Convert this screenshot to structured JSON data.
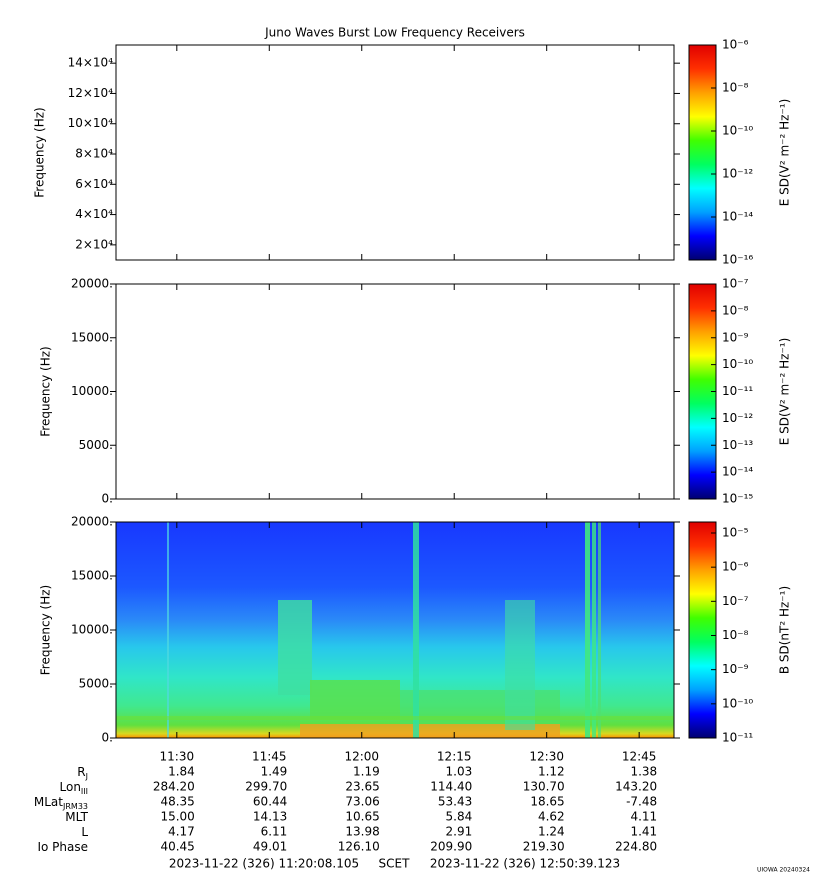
{
  "title": "Juno Waves Burst Low Frequency Receivers",
  "colormap": [
    "#000070",
    "#0000ff",
    "#00a0ff",
    "#00ffff",
    "#00ff60",
    "#40ff00",
    "#ffff00",
    "#ffa000",
    "#ff3000",
    "#e00000"
  ],
  "chart_data": [
    {
      "type": "spectrogram",
      "ylabel": "Frequency (Hz)",
      "ylim": [
        10000,
        152000
      ],
      "yticks": [
        {
          "value": 20000,
          "label": "2×10⁴"
        },
        {
          "value": 40000,
          "label": "4×10⁴"
        },
        {
          "value": 60000,
          "label": "6×10⁴"
        },
        {
          "value": 80000,
          "label": "8×10⁴"
        },
        {
          "value": 100000,
          "label": "10×10⁴"
        },
        {
          "value": 120000,
          "label": "12×10⁴"
        },
        {
          "value": 140000,
          "label": "14×10⁴"
        }
      ],
      "colorbar": {
        "label": "E SD(V² m⁻² Hz⁻¹)",
        "scale": "log",
        "clim": [
          1e-16,
          1e-06
        ],
        "ticks": [
          {
            "value": 1e-16,
            "label": "10⁻¹⁶"
          },
          {
            "value": 1e-14,
            "label": "10⁻¹⁴"
          },
          {
            "value": 1e-12,
            "label": "10⁻¹²"
          },
          {
            "value": 1e-10,
            "label": "10⁻¹⁰"
          },
          {
            "value": 1e-08,
            "label": "10⁻⁸"
          },
          {
            "value": 1e-06,
            "label": "10⁻⁶"
          }
        ]
      }
    },
    {
      "type": "spectrogram",
      "ylabel": "Frequency (Hz)",
      "ylim": [
        0,
        20000
      ],
      "yticks": [
        {
          "value": 0,
          "label": "0."
        },
        {
          "value": 5000,
          "label": "5000."
        },
        {
          "value": 10000,
          "label": "10000."
        },
        {
          "value": 15000,
          "label": "15000."
        },
        {
          "value": 20000,
          "label": "20000."
        }
      ],
      "colorbar": {
        "label": "E SD(V² m⁻² Hz⁻¹)",
        "scale": "log",
        "clim": [
          1e-15,
          1e-07
        ],
        "ticks": [
          {
            "value": 1e-15,
            "label": "10⁻¹⁵"
          },
          {
            "value": 1e-14,
            "label": "10⁻¹⁴"
          },
          {
            "value": 1e-13,
            "label": "10⁻¹³"
          },
          {
            "value": 1e-12,
            "label": "10⁻¹²"
          },
          {
            "value": 1e-11,
            "label": "10⁻¹¹"
          },
          {
            "value": 1e-10,
            "label": "10⁻¹⁰"
          },
          {
            "value": 1e-09,
            "label": "10⁻⁹"
          },
          {
            "value": 1e-08,
            "label": "10⁻⁸"
          },
          {
            "value": 1e-07,
            "label": "10⁻⁷"
          }
        ]
      }
    },
    {
      "type": "spectrogram",
      "ylabel": "Frequency (Hz)",
      "ylim": [
        0,
        20000
      ],
      "yticks": [
        {
          "value": 0,
          "label": "0."
        },
        {
          "value": 5000,
          "label": "5000."
        },
        {
          "value": 10000,
          "label": "10000."
        },
        {
          "value": 15000,
          "label": "15000."
        },
        {
          "value": 20000,
          "label": "20000."
        }
      ],
      "colorbar": {
        "label": "B SD(nT² Hz⁻¹)",
        "scale": "log",
        "clim": [
          1e-11,
          2.1e-05
        ],
        "ticks": [
          {
            "value": 1e-11,
            "label": "10⁻¹¹"
          },
          {
            "value": 1e-10,
            "label": "10⁻¹⁰"
          },
          {
            "value": 1e-09,
            "label": "10⁻⁹"
          },
          {
            "value": 1e-08,
            "label": "10⁻⁸"
          },
          {
            "value": 1e-07,
            "label": "10⁻⁷"
          },
          {
            "value": 1e-06,
            "label": "10⁻⁶"
          },
          {
            "value": 1e-05,
            "label": "10⁻⁵"
          }
        ]
      }
    }
  ],
  "xticks": [
    "11:30",
    "11:45",
    "12:00",
    "12:15",
    "12:30",
    "12:45"
  ],
  "ephemeris": [
    {
      "name": "R",
      "sub": "J",
      "values": [
        "1.84",
        "1.49",
        "1.19",
        "1.03",
        "1.12",
        "1.38"
      ]
    },
    {
      "name": "Lon",
      "sub": "III",
      "values": [
        "284.20",
        "299.70",
        "23.65",
        "114.40",
        "130.70",
        "143.20"
      ]
    },
    {
      "name": "MLat",
      "sub": "JRM33",
      "values": [
        "48.35",
        "60.44",
        "73.06",
        "53.43",
        "18.65",
        "-7.48"
      ]
    },
    {
      "name": "MLT",
      "values": [
        "15.00",
        "14.13",
        "10.65",
        "5.84",
        "4.62",
        "4.11"
      ]
    },
    {
      "name": "L",
      "values": [
        "4.17",
        "6.11",
        "13.98",
        "2.91",
        "1.24",
        "1.41"
      ]
    },
    {
      "name": "Io Phase",
      "values": [
        "40.45",
        "49.01",
        "126.10",
        "209.90",
        "219.30",
        "224.80"
      ]
    }
  ],
  "footer": {
    "start": "2023-11-22 (326) 11:20:08.105",
    "frame": "SCET",
    "end": "2023-11-22 (326) 12:50:39.123"
  },
  "credit": "UIOWA 20240324"
}
